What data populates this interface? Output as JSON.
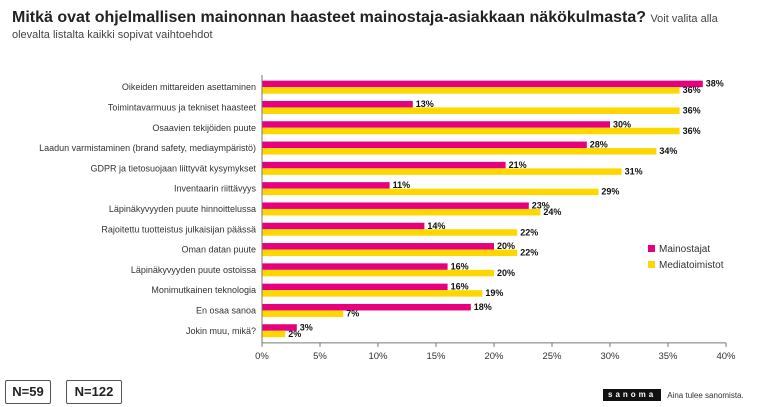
{
  "header": {
    "title": "Mitkä ovat ohjelmallisen mainonnan haasteet mainostaja-asiakkaan näkökulmasta?",
    "subtitle_part1": "Voit valita alla",
    "subtitle_part2": "olevalta listalta kaikki sopivat vaihtoehdot"
  },
  "chart_data": {
    "type": "bar",
    "orientation": "horizontal",
    "categories": [
      "Oikeiden mittareiden asettaminen",
      "Toimintavarmuus ja tekniset haasteet",
      "Osaavien tekijöiden puute",
      "Laadun varmistaminen (brand safety, mediaympäristö)",
      "GDPR ja tietosuojaan liittyvät kysymykset",
      "Inventaarin riittävyys",
      "Läpinäkyvyyden puute hinnoittelussa",
      "Rajoitettu tuotteistus julkaisijan päässä",
      "Oman datan puute",
      "Läpinäkyvyyden puute ostoissa",
      "Monimutkainen teknologia",
      "En osaa sanoa",
      "Jokin muu, mikä?"
    ],
    "series": [
      {
        "name": "Mainostajat",
        "color": "#e6007e",
        "values": [
          38,
          13,
          30,
          28,
          21,
          11,
          23,
          14,
          20,
          16,
          16,
          18,
          3
        ],
        "labels": [
          "38%",
          "13%",
          "30%",
          "28%",
          "21%",
          "11%",
          "23%",
          "14%",
          "20%",
          "16%",
          "16%",
          "18%",
          "3%"
        ]
      },
      {
        "name": "Mediatoimistot",
        "color": "#ffd700",
        "values": [
          36,
          36,
          36,
          34,
          31,
          29,
          24,
          22,
          22,
          20,
          19,
          7,
          2
        ],
        "labels": [
          "36%",
          "36%",
          "36%",
          "34%",
          "31%",
          "29%",
          "24%",
          "22%",
          "22%",
          "20%",
          "19%",
          "7%",
          "2%"
        ]
      }
    ],
    "xlim": [
      0,
      40
    ],
    "xticks": [
      "0%",
      "5%",
      "10%",
      "15%",
      "20%",
      "25%",
      "30%",
      "35%",
      "40%"
    ],
    "grid": false,
    "legend": "right"
  },
  "sample_sizes": {
    "left": "N=59",
    "right": "N=122"
  },
  "brand": {
    "logo": "sanoma",
    "tagline": "Aina tulee sanomista."
  }
}
